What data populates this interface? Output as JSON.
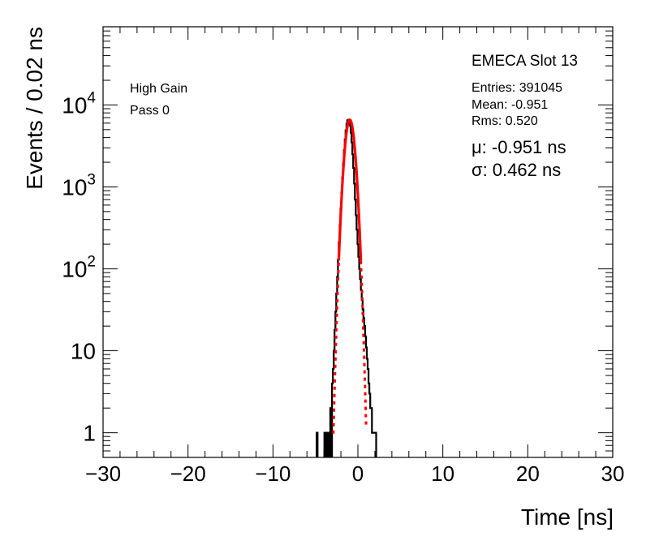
{
  "chart_data": {
    "type": "line",
    "xlabel": "Time [ns]",
    "ylabel": "Events / 0.02 ns",
    "xlim": [
      -30,
      30
    ],
    "ylim": [
      0.5,
      90000
    ],
    "yscale": "log",
    "grid": false,
    "x_ticks": [
      {
        "value": -30,
        "label": "−30"
      },
      {
        "value": -20,
        "label": "−20"
      },
      {
        "value": -10,
        "label": "−10"
      },
      {
        "value": 0,
        "label": "0"
      },
      {
        "value": 10,
        "label": "10"
      },
      {
        "value": 20,
        "label": "20"
      },
      {
        "value": 30,
        "label": "30"
      }
    ],
    "y_ticks": [
      {
        "value": 1,
        "base": "1",
        "exp": ""
      },
      {
        "value": 10,
        "base": "10",
        "exp": ""
      },
      {
        "value": 100,
        "base": "10",
        "exp": "2"
      },
      {
        "value": 1000,
        "base": "10",
        "exp": "3"
      },
      {
        "value": 10000,
        "base": "10",
        "exp": "4"
      }
    ],
    "annotations": {
      "gain": "High Gain",
      "pass": "Pass 0",
      "slot": "EMECA Slot 13",
      "entries": "Entries: 391045",
      "mean": "Mean: -0.951",
      "rms": "Rms: 0.520",
      "mu": "μ: -0.951 ns",
      "sigma": "σ: 0.462 ns"
    },
    "series": [
      {
        "kind": "histogram",
        "color": "#000000",
        "x": [
          -4.8,
          -4.7,
          -3.9,
          -3.6,
          -3.4,
          -3.2,
          -3.0,
          -2.9,
          -2.8,
          -2.7,
          -2.6,
          -2.5,
          -2.4,
          -2.3,
          -2.2,
          -2.1,
          -2.0,
          -1.9,
          -1.8,
          -1.7,
          -1.6,
          -1.5,
          -1.4,
          -1.3,
          -1.2,
          -1.1,
          -1.0,
          -0.9,
          -0.8,
          -0.7,
          -0.6,
          -0.5,
          -0.4,
          -0.3,
          -0.2,
          -0.1,
          0.0,
          0.1,
          0.2,
          0.3,
          0.4,
          0.5,
          0.6,
          0.7,
          0.8,
          0.9,
          1.0,
          1.1,
          1.2,
          1.3,
          1.4,
          1.5,
          1.6,
          1.7,
          1.8,
          1.9,
          2.0,
          2.1,
          2.2,
          2.3
        ],
        "y": [
          1,
          0,
          1,
          1,
          1,
          2,
          4,
          6,
          10,
          18,
          30,
          50,
          80,
          130,
          210,
          340,
          540,
          850,
          1300,
          1950,
          2800,
          3800,
          4900,
          5900,
          6500,
          6600,
          6300,
          5600,
          4600,
          3500,
          2500,
          1700,
          1100,
          700,
          450,
          300,
          200,
          140,
          100,
          75,
          55,
          42,
          32,
          25,
          20,
          15,
          11,
          8,
          6,
          4,
          3,
          2,
          2,
          1,
          1,
          1,
          1,
          1,
          0,
          0
        ]
      },
      {
        "kind": "gaussian-fit",
        "color": "#ff0000",
        "mu": -0.951,
        "sigma": 0.462,
        "amplitude": 6600,
        "solid_range": [
          -2.25,
          0.35
        ]
      }
    ]
  }
}
